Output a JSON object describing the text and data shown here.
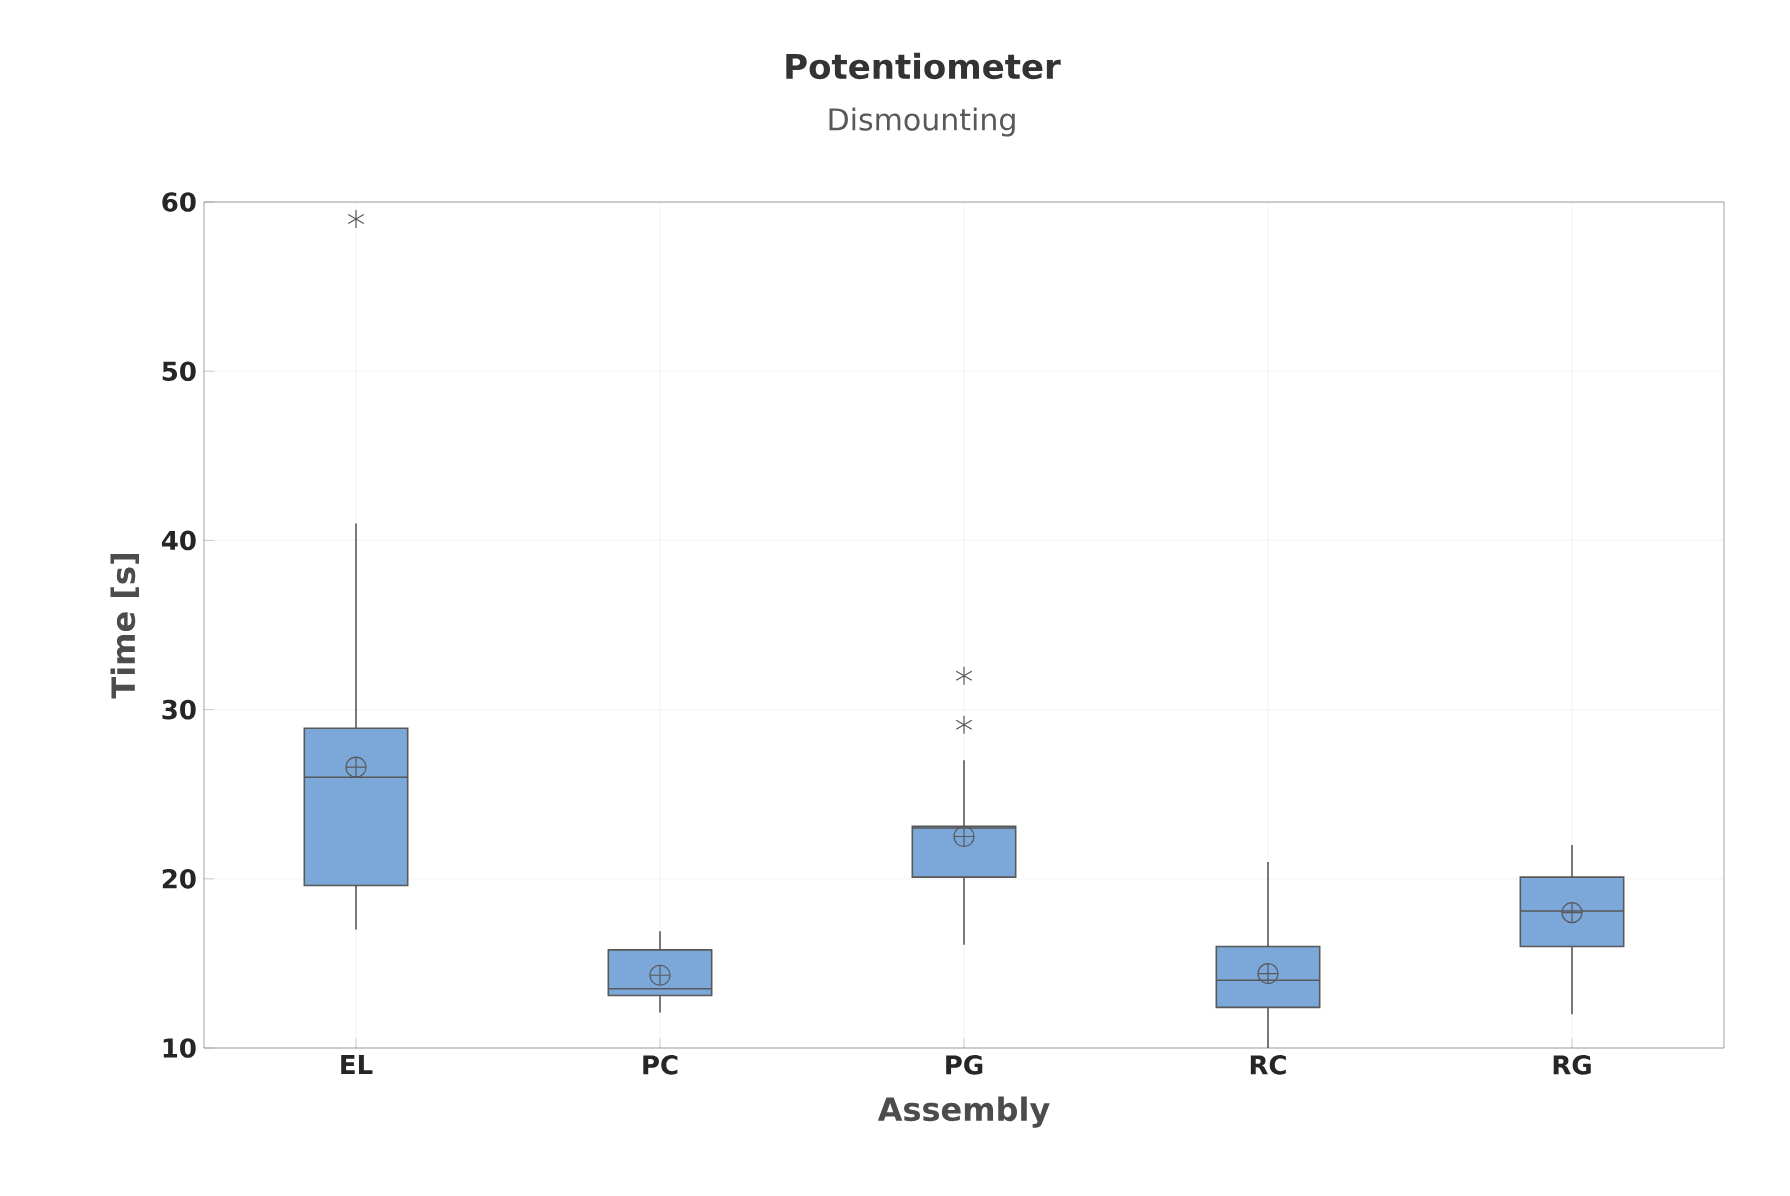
{
  "chart_data": {
    "type": "box",
    "title": "Potentiometer",
    "subtitle": "Dismounting",
    "xlabel": "Assembly",
    "ylabel": "Time [s]",
    "categories": [
      "EL",
      "PC",
      "PG",
      "RC",
      "RG"
    ],
    "color": "#7ba7d9",
    "boxes": [
      {
        "low": 17,
        "q1": 19.6,
        "median": 26,
        "q3": 28.9,
        "high": 41,
        "mean": 26.6,
        "outliers": [
          59
        ]
      },
      {
        "low": 12.1,
        "q1": 13.1,
        "median": 13.5,
        "q3": 15.8,
        "high": 16.9,
        "mean": 14.3
      },
      {
        "low": 16.1,
        "q1": 20.1,
        "median": 23,
        "q3": 23.1,
        "high": 27,
        "mean": 22.5,
        "outliers": [
          29.1,
          32
        ]
      },
      {
        "low": 10,
        "q1": 12.4,
        "median": 14,
        "q3": 16,
        "high": 21,
        "mean": 14.4
      },
      {
        "low": 12,
        "q1": 16,
        "median": 18.1,
        "q3": 20.1,
        "high": 22,
        "mean": 18
      }
    ],
    "ylim": [
      10,
      60
    ],
    "yticks": [
      10,
      20,
      30,
      40,
      50,
      60
    ],
    "grid": true
  }
}
